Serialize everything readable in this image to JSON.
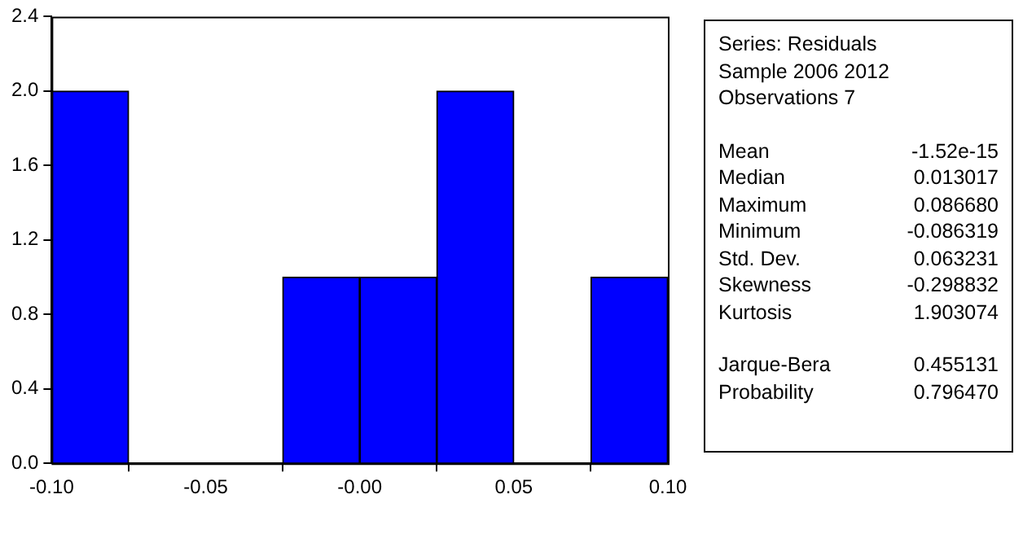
{
  "chart_data": {
    "type": "histogram",
    "bins": [
      -0.1,
      -0.075,
      -0.05,
      -0.025,
      0,
      0.025,
      0.05,
      0.075,
      0.1
    ],
    "values": [
      2,
      0,
      0,
      1,
      1,
      2,
      0,
      1
    ],
    "color": "#0000ff",
    "xlim": [
      -0.1,
      0.1
    ],
    "xticks": [
      {
        "value": -0.1,
        "label": "-0.10"
      },
      {
        "value": -0.05,
        "label": "-0.05"
      },
      {
        "value": 0,
        "label": "-0.00"
      },
      {
        "value": 0.05,
        "label": "0.05"
      },
      {
        "value": 0.1,
        "label": "0.10"
      }
    ],
    "ylim": [
      0,
      2.4
    ],
    "yticks": [
      {
        "value": 0,
        "label": "0.0"
      },
      {
        "value": 0.4,
        "label": "0.4"
      },
      {
        "value": 0.8,
        "label": "0.8"
      },
      {
        "value": 1.2,
        "label": "1.2"
      },
      {
        "value": 1.6,
        "label": "1.6"
      },
      {
        "value": 2,
        "label": "2.0"
      },
      {
        "value": 2.4,
        "label": "2.4"
      }
    ],
    "grid": false,
    "legend": false,
    "annotations": [
      "Series: Residuals",
      "Sample 2006 2012",
      "Observations 7",
      "Mean\t-1.52e-15",
      "Median\t0.013017",
      "Maximum\t0.086680",
      "Minimum\t-0.086319",
      "Std. Dev.\t0.063231",
      "Skewness\t-0.298832",
      "Kurtosis\t1.903074",
      "Jarque-Bera\t0.455131",
      "Probability\t0.796470"
    ]
  }
}
